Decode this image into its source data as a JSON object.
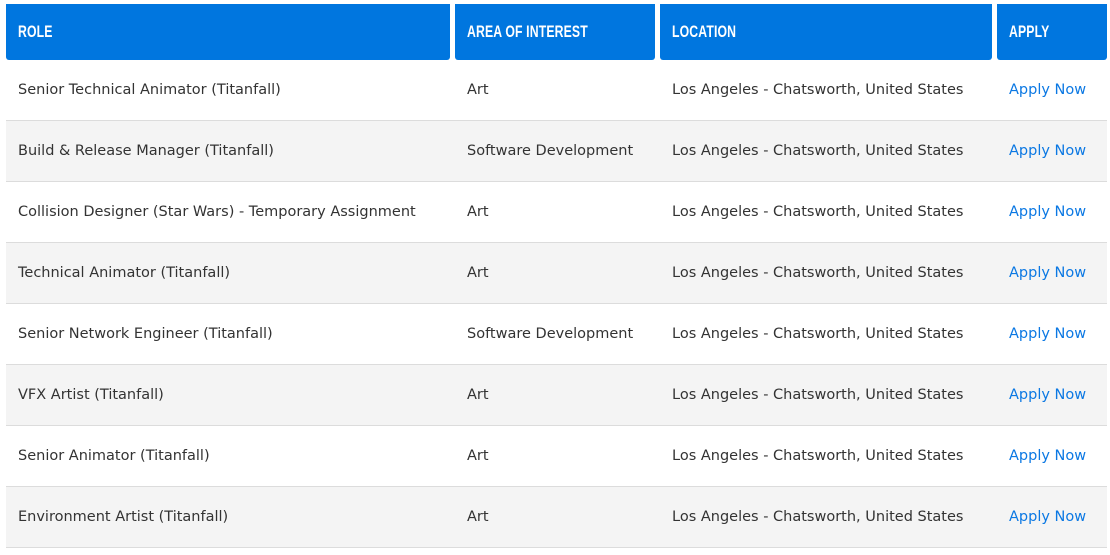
{
  "headers": {
    "role": "ROLE",
    "area": "AREA OF INTEREST",
    "location": "LOCATION",
    "apply": "APPLY"
  },
  "colors": {
    "header_bg": "#0076df",
    "link": "#0b78e3",
    "alt_row": "#f4f4f4"
  },
  "rows": [
    {
      "role": "Senior Technical Animator (Titanfall)",
      "area": "Art",
      "location": "Los Angeles - Chatsworth, United States",
      "apply": "Apply Now"
    },
    {
      "role": "Build & Release Manager (Titanfall)",
      "area": "Software Development",
      "location": "Los Angeles - Chatsworth, United States",
      "apply": "Apply Now"
    },
    {
      "role": "Collision Designer (Star Wars) - Temporary Assignment",
      "area": "Art",
      "location": "Los Angeles - Chatsworth, United States",
      "apply": "Apply Now"
    },
    {
      "role": "Technical Animator (Titanfall)",
      "area": "Art",
      "location": "Los Angeles - Chatsworth, United States",
      "apply": "Apply Now"
    },
    {
      "role": "Senior Network Engineer (Titanfall)",
      "area": "Software Development",
      "location": "Los Angeles - Chatsworth, United States",
      "apply": "Apply Now"
    },
    {
      "role": "VFX Artist (Titanfall)",
      "area": "Art",
      "location": "Los Angeles - Chatsworth, United States",
      "apply": "Apply Now"
    },
    {
      "role": "Senior Animator (Titanfall)",
      "area": "Art",
      "location": "Los Angeles - Chatsworth, United States",
      "apply": "Apply Now"
    },
    {
      "role": "Environment Artist (Titanfall)",
      "area": "Art",
      "location": "Los Angeles - Chatsworth, United States",
      "apply": "Apply Now"
    }
  ]
}
